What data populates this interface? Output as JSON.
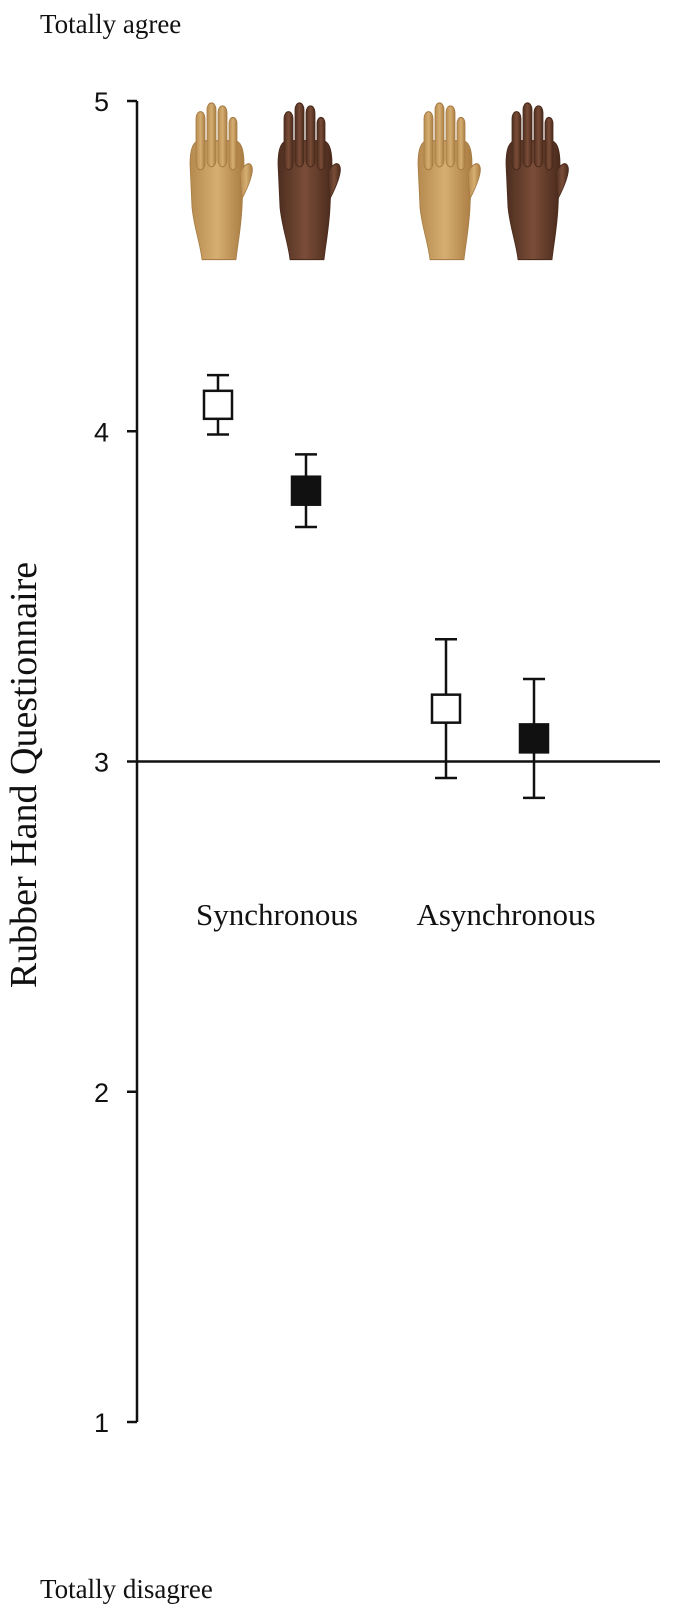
{
  "chart_data": {
    "type": "scatter",
    "ylabel": "Rubber Hand Questionnaire",
    "top_anchor": "Totally agree",
    "bottom_anchor": "Totally disagree",
    "ylim": [
      1,
      5
    ],
    "yticks": [
      1,
      2,
      3,
      4,
      5
    ],
    "reference_line": 3,
    "grid": false,
    "legend": "none",
    "groups": [
      "Synchronous",
      "Asynchronous"
    ],
    "series": [
      {
        "marker": "open-square",
        "hand_image": "light-skin-hand",
        "values": [
          4.08,
          3.16
        ],
        "err_low": [
          0.09,
          0.21
        ],
        "err_high": [
          0.09,
          0.21
        ]
      },
      {
        "marker": "filled-square",
        "hand_image": "dark-skin-hand",
        "values": [
          3.82,
          3.07
        ],
        "err_low": [
          0.11,
          0.18
        ],
        "err_high": [
          0.11,
          0.18
        ]
      }
    ],
    "colors": {
      "light_hand": "#c9a063",
      "light_hand_shade": "#a77d45",
      "dark_hand": "#6b4230",
      "dark_hand_shade": "#4a2a1c",
      "ink": "#111111"
    }
  }
}
